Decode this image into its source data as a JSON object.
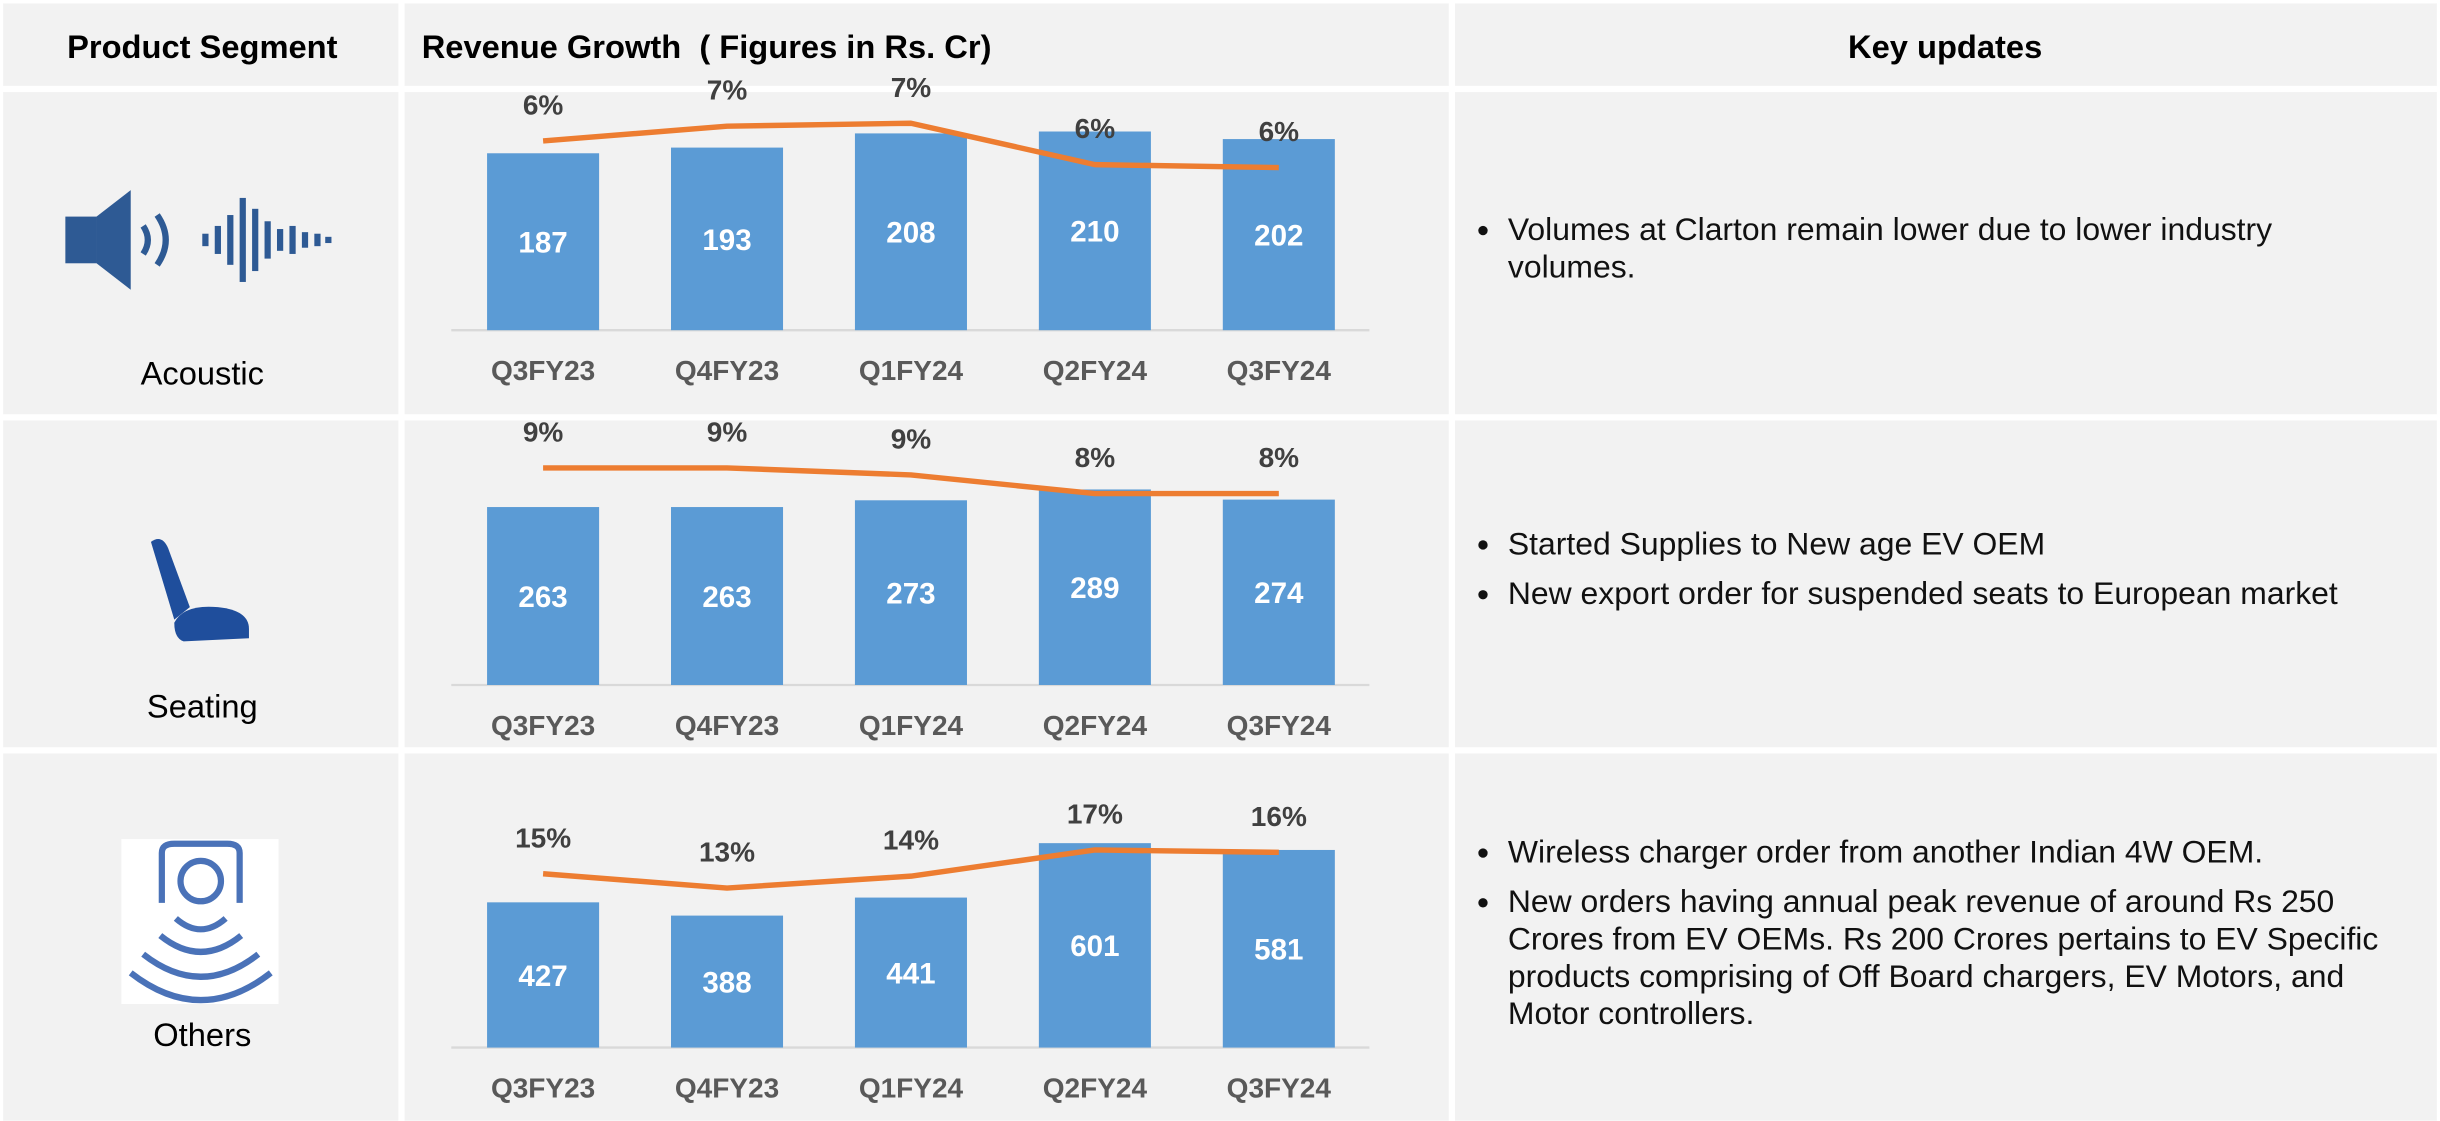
{
  "header": {
    "segment": "Product Segment",
    "revenue": "Revenue Growth  ( Figures in Rs. Cr)",
    "updates": "Key updates"
  },
  "segments": [
    {
      "name": "Acoustic",
      "updates": [
        "Volumes at Clarton remain lower due to lower industry volumes."
      ]
    },
    {
      "name": "Seating",
      "updates": [
        "Started Supplies to New age EV OEM",
        "New export order for suspended seats to European market"
      ]
    },
    {
      "name": "Others",
      "updates": [
        "Wireless charger order from another Indian 4W OEM.",
        "New orders having annual peak revenue of around Rs 250 Crores from EV OEMs. Rs 200 Crores pertains to EV Specific products comprising of Off Board chargers, EV Motors, and Motor controllers."
      ]
    }
  ],
  "chart_data": [
    {
      "type": "bar",
      "categories": [
        "Q3FY23",
        "Q4FY23",
        "Q1FY24",
        "Q2FY24",
        "Q3FY24"
      ],
      "ylim": [
        0,
        250
      ],
      "y2lim": [
        0,
        8
      ],
      "series": [
        {
          "color": "#5b9bd5",
          "values": [
            187,
            193,
            208,
            210,
            202
          ]
        },
        {
          "type": "line",
          "axis": "y2",
          "color": "#ed7d31",
          "values": [
            6.4,
            6.9,
            7.0,
            5.6,
            5.5
          ],
          "value_labels": [
            "6%",
            "7%",
            "7%",
            "6%",
            "6%"
          ]
        }
      ]
    },
    {
      "type": "bar",
      "categories": [
        "Q3FY23",
        "Q4FY23",
        "Q1FY24",
        "Q2FY24",
        "Q3FY24"
      ],
      "ylim": [
        0,
        345
      ],
      "y2lim": [
        0,
        10
      ],
      "series": [
        {
          "color": "#5b9bd5",
          "values": [
            263,
            263,
            273,
            289,
            274
          ]
        },
        {
          "type": "line",
          "axis": "y2",
          "color": "#ed7d31",
          "values": [
            9.3,
            9.3,
            9.0,
            8.2,
            8.2
          ],
          "value_labels": [
            "9%",
            "9%",
            "9%",
            "8%",
            "8%"
          ]
        }
      ]
    },
    {
      "type": "bar",
      "categories": [
        "Q3FY23",
        "Q4FY23",
        "Q1FY24",
        "Q2FY24",
        "Q3FY24"
      ],
      "ylim": [
        0,
        700
      ],
      "y2lim": [
        0,
        20
      ],
      "series": [
        {
          "color": "#5b9bd5",
          "values": [
            427,
            388,
            441,
            601,
            581
          ]
        },
        {
          "type": "line",
          "axis": "y2",
          "color": "#ed7d31",
          "values": [
            14.6,
            13.4,
            14.4,
            16.6,
            16.4
          ],
          "value_labels": [
            "15%",
            "13%",
            "14%",
            "17%",
            "16%"
          ]
        }
      ]
    }
  ]
}
